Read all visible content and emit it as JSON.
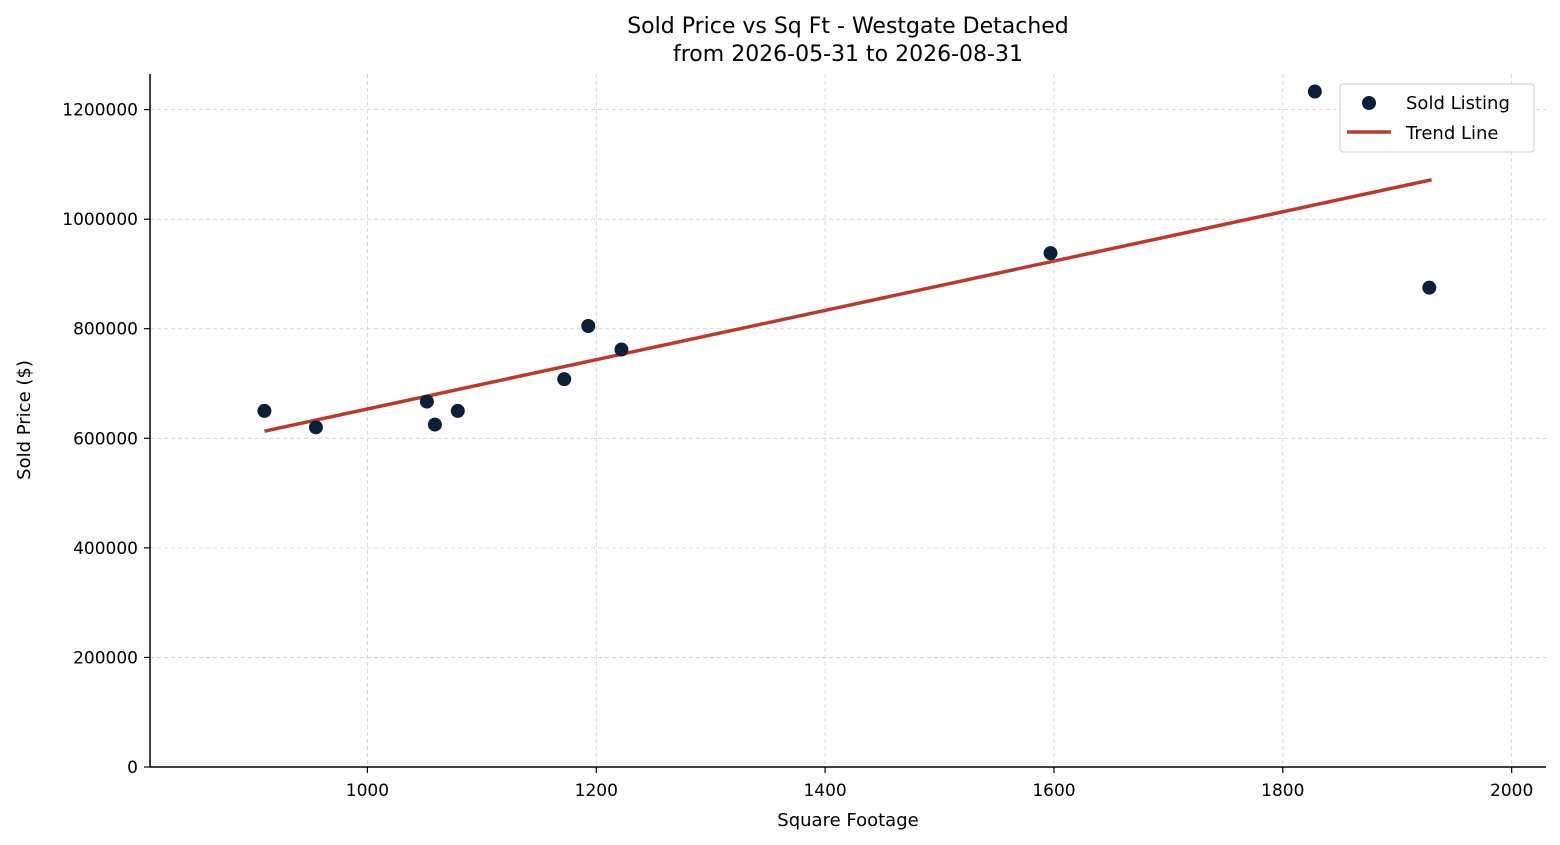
{
  "chart_data": {
    "type": "scatter",
    "title": "Sold Price vs Sq Ft - Westgate Detached",
    "subtitle": "from 2026-05-31 to 2026-08-31",
    "xlabel": "Square Footage",
    "ylabel": "Sold Price ($)",
    "xlim": [
      810,
      2030
    ],
    "ylim": [
      0,
      1265000
    ],
    "xticks": [
      1000,
      1200,
      1400,
      1600,
      1800,
      2000
    ],
    "yticks": [
      0,
      200000,
      400000,
      600000,
      800000,
      1000000,
      1200000
    ],
    "grid": true,
    "legend_position": "top-right",
    "series": [
      {
        "name": "Sold Listing",
        "kind": "points",
        "color": "#0c1f3a",
        "points": [
          {
            "x": 910,
            "y": 650000
          },
          {
            "x": 955,
            "y": 620000
          },
          {
            "x": 1052,
            "y": 667000
          },
          {
            "x": 1059,
            "y": 625000
          },
          {
            "x": 1079,
            "y": 650000
          },
          {
            "x": 1172,
            "y": 708000
          },
          {
            "x": 1193,
            "y": 805000
          },
          {
            "x": 1222,
            "y": 762000
          },
          {
            "x": 1597,
            "y": 938000
          },
          {
            "x": 1828,
            "y": 1233000
          },
          {
            "x": 1928,
            "y": 875000
          }
        ]
      },
      {
        "name": "Trend Line",
        "kind": "line",
        "color": "#b83c2e",
        "points": [
          {
            "x": 910,
            "y": 613000
          },
          {
            "x": 1930,
            "y": 1072000
          }
        ]
      }
    ]
  }
}
